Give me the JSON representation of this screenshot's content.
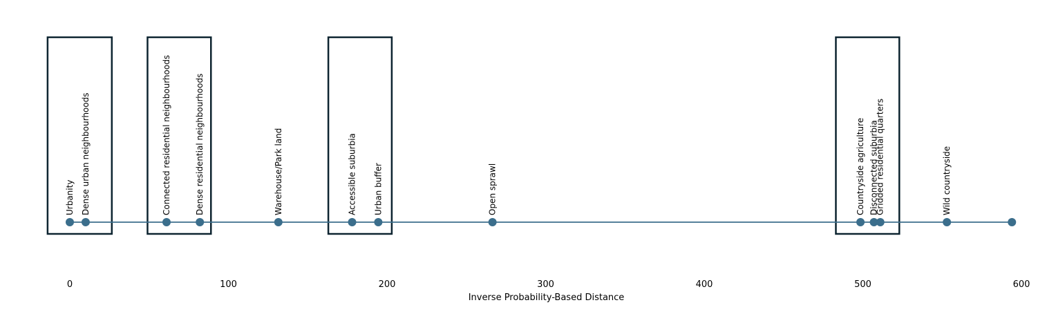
{
  "chart_data": {
    "type": "scatter",
    "title": "",
    "xlabel": "Inverse Probability-Based Distance",
    "ylabel": "",
    "xlim": [
      -14,
      601
    ],
    "xticks": [
      0,
      100,
      200,
      300,
      400,
      500,
      600
    ],
    "grid": false,
    "series_color": "#3b6e8c",
    "box_color": "#0d2430",
    "points": [
      {
        "label": "Urbanity",
        "x": 0
      },
      {
        "label": "Dense urban neighbourhoods",
        "x": 10
      },
      {
        "label": "Connected residential neighbourhoods",
        "x": 61
      },
      {
        "label": "Dense residential neighbourhoods",
        "x": 82
      },
      {
        "label": "Warehouse/Park land",
        "x": 131.5
      },
      {
        "label": "Accessible suburbia",
        "x": 178
      },
      {
        "label": "Urban buffer",
        "x": 194.5
      },
      {
        "label": "Open sprawl",
        "x": 266.5
      },
      {
        "label": "Countryside agriculture",
        "x": 498.5
      },
      {
        "label": "Disconnected suburbia",
        "x": 507
      },
      {
        "label": "Gridded residential quarters",
        "x": 511
      },
      {
        "label": "Wild countryside",
        "x": 553
      },
      {
        "label": "",
        "x": 594
      }
    ],
    "groups": [
      {
        "x_range": [
          -14,
          26.5
        ]
      },
      {
        "x_range": [
          49,
          89
        ]
      },
      {
        "x_range": [
          163,
          203
        ]
      },
      {
        "x_range": [
          483,
          523
        ]
      }
    ]
  }
}
